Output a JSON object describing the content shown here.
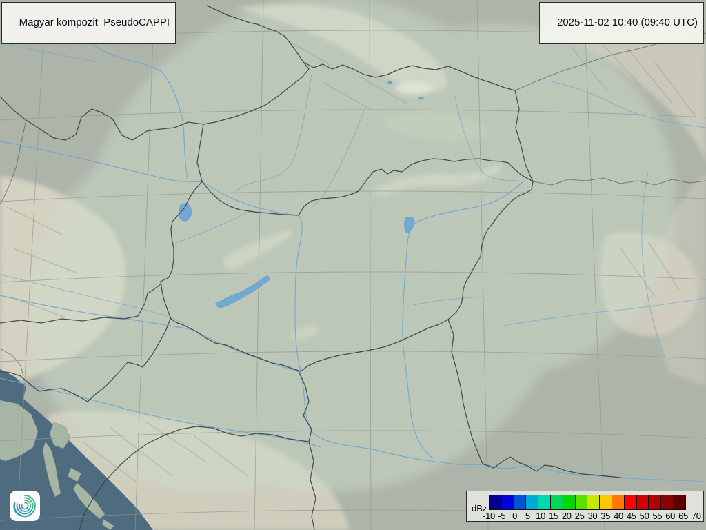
{
  "header": {
    "product_label": "Magyar kompozit  PseudoCAPPI",
    "timestamp": "2025-11-02 10:40 (09:40 UTC)"
  },
  "legend": {
    "unit_label": "dBz",
    "tick_values": [
      "-10",
      "-5",
      "0",
      "5",
      "10",
      "15",
      "20",
      "25",
      "30",
      "35",
      "40",
      "45",
      "50",
      "55",
      "60",
      "65",
      "70"
    ],
    "scale_colors": [
      "#00008c",
      "#0000e0",
      "#0055d4",
      "#00aad8",
      "#00d8b0",
      "#00d85c",
      "#00d800",
      "#58e000",
      "#c8e800",
      "#ffc800",
      "#ff7800",
      "#ff0000",
      "#d40000",
      "#b40000",
      "#8c0000",
      "#5c0000"
    ]
  },
  "logo": {
    "icon": "swirl-logo",
    "gradient_colors": [
      "#3b82c4",
      "#35aaa2",
      "#53c07e"
    ]
  },
  "map": {
    "palette": {
      "land_base": "#aeb5aa",
      "coverage_tint": "#cfe0cc",
      "mountain": "#ded9c8",
      "plain": "#c9d9c6",
      "sea": "#4e6b80",
      "river": "#6fa6d4",
      "lake": "#6fa9d4",
      "border": "#3a4040",
      "graticule": "#8f9894"
    }
  }
}
